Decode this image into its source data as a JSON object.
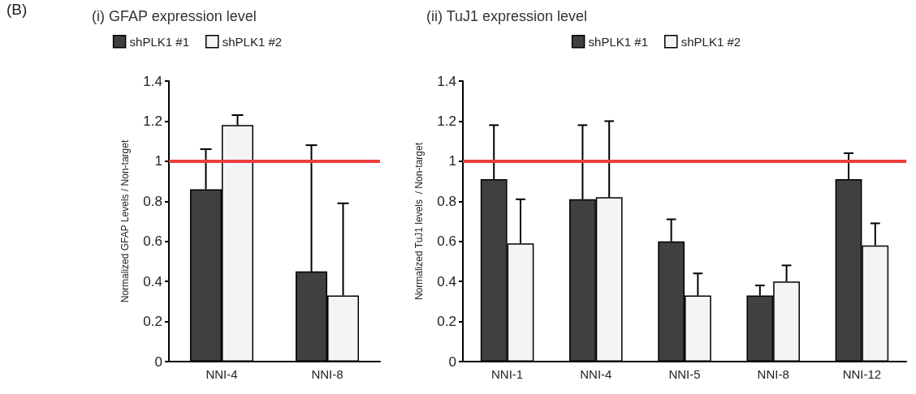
{
  "chart_data": [
    {
      "type": "bar",
      "title": "(i) GFAP expression level",
      "ylabel": "Normalized GFAP Levels / Non-target",
      "annotations": [
        "(B)"
      ],
      "categories": [
        "NNI-4",
        "NNI-8"
      ],
      "series": [
        {
          "name": "shPLK1 #1",
          "color": "#404040",
          "values": [
            0.86,
            0.45
          ],
          "errors": [
            [
              0.86,
              1.06
            ],
            [
              0.45,
              1.08
            ]
          ]
        },
        {
          "name": "shPLK1 #2",
          "color": "#f2f4f6",
          "values": [
            1.18,
            0.33
          ],
          "errors": [
            [
              1.18,
              1.23
            ],
            [
              0.33,
              0.79
            ]
          ]
        }
      ],
      "ylim": [
        0,
        1.4
      ],
      "yticks": [
        0,
        0.2,
        0.4,
        0.6,
        0.8,
        1,
        1.2,
        1.4
      ],
      "grid": false,
      "legend": "top",
      "ref_lines": [
        {
          "axis": "y",
          "value": 1,
          "color": "#f03c3c"
        }
      ]
    },
    {
      "type": "bar",
      "title": "(ii) TuJ1 expression level",
      "ylabel": "Normalized TuJ1 levels  / Non-target",
      "categories": [
        "NNI-1",
        "NNI-4",
        "NNI-5",
        "NNI-8",
        "NNI-12"
      ],
      "series": [
        {
          "name": "shPLK1 #1",
          "color": "#404040",
          "values": [
            0.91,
            0.81,
            0.6,
            0.33,
            0.91
          ],
          "errors": [
            [
              0.91,
              1.18
            ],
            [
              0.81,
              1.18
            ],
            [
              0.6,
              0.71
            ],
            [
              0.33,
              0.38
            ],
            [
              0.91,
              1.04
            ]
          ]
        },
        {
          "name": "shPLK1 #2",
          "color": "#f2f4f6",
          "values": [
            0.59,
            0.82,
            0.33,
            0.4,
            0.58
          ],
          "errors": [
            [
              0.59,
              0.81
            ],
            [
              0.82,
              1.2
            ],
            [
              0.33,
              0.44
            ],
            [
              0.4,
              0.48
            ],
            [
              0.58,
              0.69
            ]
          ]
        }
      ],
      "ylim": [
        0,
        1.4
      ],
      "yticks": [
        0,
        0.2,
        0.4,
        0.6,
        0.8,
        1,
        1.2,
        1.4
      ],
      "grid": false,
      "legend": "top",
      "ref_lines": [
        {
          "axis": "y",
          "value": 1,
          "color": "#f03c3c"
        }
      ]
    }
  ]
}
